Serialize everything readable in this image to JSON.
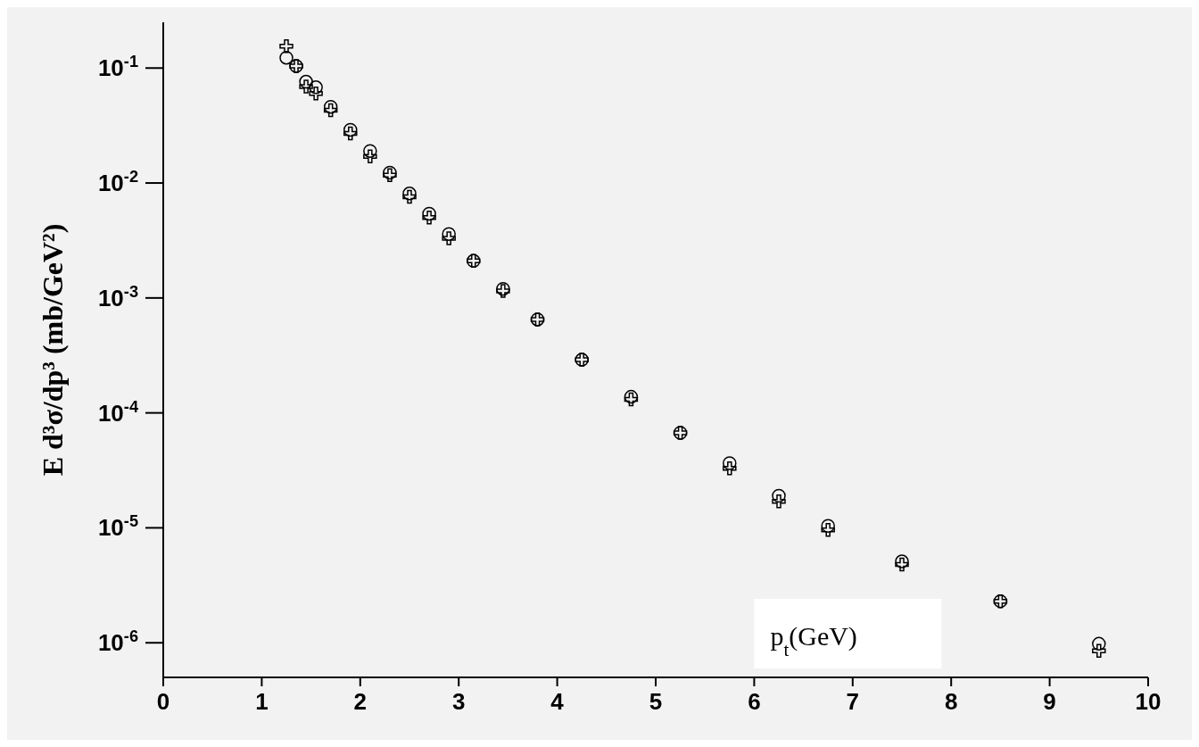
{
  "chart_data": {
    "type": "scatter",
    "xlabel": "p$_{t}$(GeV)",
    "ylabel": "E d³σ/dp³ (mb/GeV²)",
    "log": "y",
    "grid": false,
    "legend": false,
    "xlim": [
      0,
      10
    ],
    "xticks": [
      0,
      1,
      2,
      3,
      4,
      5,
      6,
      7,
      8,
      9,
      10
    ],
    "ylim": [
      5e-07,
      0.25
    ],
    "yticks": [
      {
        "value": 1e-06,
        "label": "10$^{-6}$"
      },
      {
        "value": 1e-05,
        "label": "10$^{-5}$"
      },
      {
        "value": 0.0001,
        "label": "10$^{-4}$"
      },
      {
        "value": 0.001,
        "label": "10$^{-3}$"
      },
      {
        "value": 0.01,
        "label": "10$^{-2}$"
      },
      {
        "value": 0.1,
        "label": "10$^{-1}$"
      }
    ],
    "x": [
      1.25,
      1.35,
      1.45,
      1.55,
      1.7,
      1.9,
      2.1,
      2.3,
      2.5,
      2.7,
      2.9,
      3.15,
      3.45,
      3.8,
      4.25,
      4.75,
      5.25,
      5.75,
      6.25,
      6.75,
      7.5,
      8.5,
      9.5
    ],
    "series": [
      {
        "color": "#000000",
        "marker": "circle",
        "values": [
          0.123,
          0.104,
          0.076,
          0.068,
          0.046,
          0.029,
          0.019,
          0.0123,
          0.0081,
          0.0054,
          0.0036,
          0.0021,
          0.0012,
          0.00065,
          0.00029,
          0.000138,
          6.7e-05,
          3.65e-05,
          1.9e-05,
          1.04e-05,
          5.1e-06,
          2.3e-06,
          9.8e-07
        ]
      },
      {
        "color": "#000000",
        "marker": "cross",
        "values": [
          0.155,
          0.104,
          0.069,
          0.06,
          0.043,
          0.027,
          0.017,
          0.0117,
          0.0076,
          0.005,
          0.0033,
          0.0021,
          0.00115,
          0.00065,
          0.00029,
          0.000131,
          6.7e-05,
          3.3e-05,
          1.7e-05,
          9.6e-06,
          4.8e-06,
          2.3e-06,
          8.5e-07
        ]
      }
    ]
  }
}
